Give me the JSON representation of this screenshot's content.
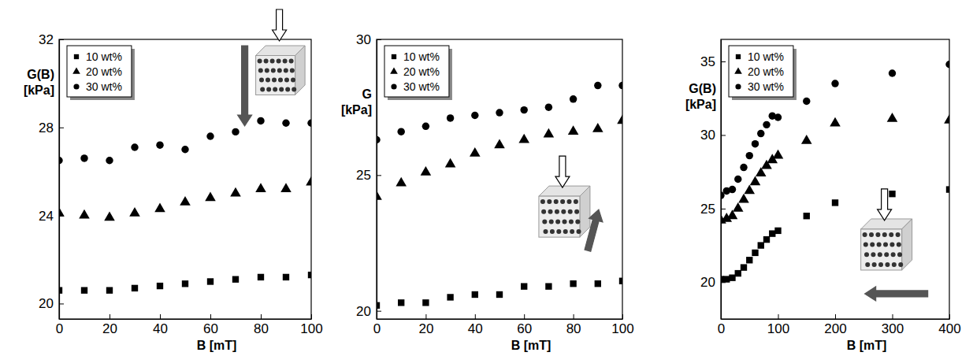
{
  "chart_data": [
    {
      "type": "scatter",
      "xlabel": "B [mT]",
      "ylabel": "G(B) [kPa]",
      "legend": "upper left",
      "x": [
        0,
        10,
        20,
        30,
        40,
        50,
        60,
        70,
        80,
        90,
        100
      ],
      "xlim": [
        0,
        100
      ],
      "xticks": [
        0,
        20,
        40,
        60,
        80,
        100
      ],
      "ylim": [
        19.3,
        32
      ],
      "yticks": [
        20,
        24,
        28,
        32
      ],
      "series": [
        {
          "name": "10 wt%",
          "color": "#000000",
          "marker": "square",
          "values": [
            20.6,
            20.6,
            20.6,
            20.7,
            20.8,
            20.9,
            21.0,
            21.1,
            21.2,
            21.2,
            21.3
          ]
        },
        {
          "name": "20 wt%",
          "color": "#000000",
          "marker": "triangle",
          "values": [
            24.1,
            24.0,
            23.9,
            24.1,
            24.3,
            24.6,
            24.8,
            25.0,
            25.2,
            25.2,
            25.5
          ]
        },
        {
          "name": "30 wt%",
          "color": "#000000",
          "marker": "circle",
          "values": [
            26.5,
            26.6,
            26.5,
            27.1,
            27.2,
            27.0,
            27.6,
            27.8,
            28.3,
            28.2,
            28.2
          ]
        }
      ]
    },
    {
      "type": "scatter",
      "xlabel": "B [mT]",
      "ylabel": "G [kPa]",
      "legend": "upper left",
      "x": [
        0,
        10,
        20,
        30,
        40,
        50,
        60,
        70,
        80,
        90,
        100
      ],
      "xlim": [
        0,
        100
      ],
      "xticks": [
        0,
        20,
        40,
        60,
        80,
        100
      ],
      "ylim": [
        19.7,
        30
      ],
      "yticks": [
        20,
        25,
        30
      ],
      "series": [
        {
          "name": "10 wt%",
          "color": "#000000",
          "marker": "square",
          "values": [
            20.2,
            20.3,
            20.3,
            20.5,
            20.6,
            20.6,
            20.9,
            20.9,
            21.0,
            21.0,
            21.1
          ]
        },
        {
          "name": "20 wt%",
          "color": "#000000",
          "marker": "triangle",
          "values": [
            24.2,
            24.7,
            25.1,
            25.4,
            25.8,
            26.1,
            26.3,
            26.5,
            26.6,
            26.7,
            27.0
          ]
        },
        {
          "name": "30 wt%",
          "color": "#000000",
          "marker": "circle",
          "values": [
            26.3,
            26.6,
            26.8,
            27.1,
            27.2,
            27.3,
            27.4,
            27.5,
            27.8,
            28.3,
            28.3
          ]
        }
      ]
    },
    {
      "type": "scatter",
      "xlabel": "B [mT]",
      "ylabel": "G(B) [kPa]",
      "legend": "upper left",
      "x": [
        0,
        10,
        20,
        30,
        40,
        50,
        60,
        70,
        80,
        90,
        100,
        150,
        200,
        300,
        400
      ],
      "xlim": [
        0,
        400
      ],
      "xticks": [
        0,
        100,
        200,
        300,
        400
      ],
      "ylim": [
        17.5,
        36.5
      ],
      "yticks": [
        20,
        25,
        30,
        35
      ],
      "series": [
        {
          "name": "10 wt%",
          "color": "#000000",
          "marker": "square",
          "values": [
            20.2,
            20.2,
            20.3,
            20.6,
            21.0,
            21.5,
            22.0,
            22.5,
            22.9,
            23.3,
            23.5,
            24.5,
            25.4,
            26.0,
            26.3
          ]
        },
        {
          "name": "20 wt%",
          "color": "#000000",
          "marker": "triangle",
          "values": [
            24.2,
            24.3,
            24.5,
            25.0,
            25.6,
            26.2,
            26.8,
            27.4,
            27.9,
            28.3,
            28.6,
            29.6,
            30.8,
            31.1,
            31.0
          ]
        },
        {
          "name": "30 wt%",
          "color": "#000000",
          "marker": "circle",
          "values": [
            25.9,
            26.2,
            26.3,
            27.0,
            27.8,
            28.6,
            29.4,
            30.1,
            30.7,
            31.3,
            31.2,
            32.3,
            33.5,
            34.2,
            34.8
          ]
        }
      ]
    }
  ]
}
